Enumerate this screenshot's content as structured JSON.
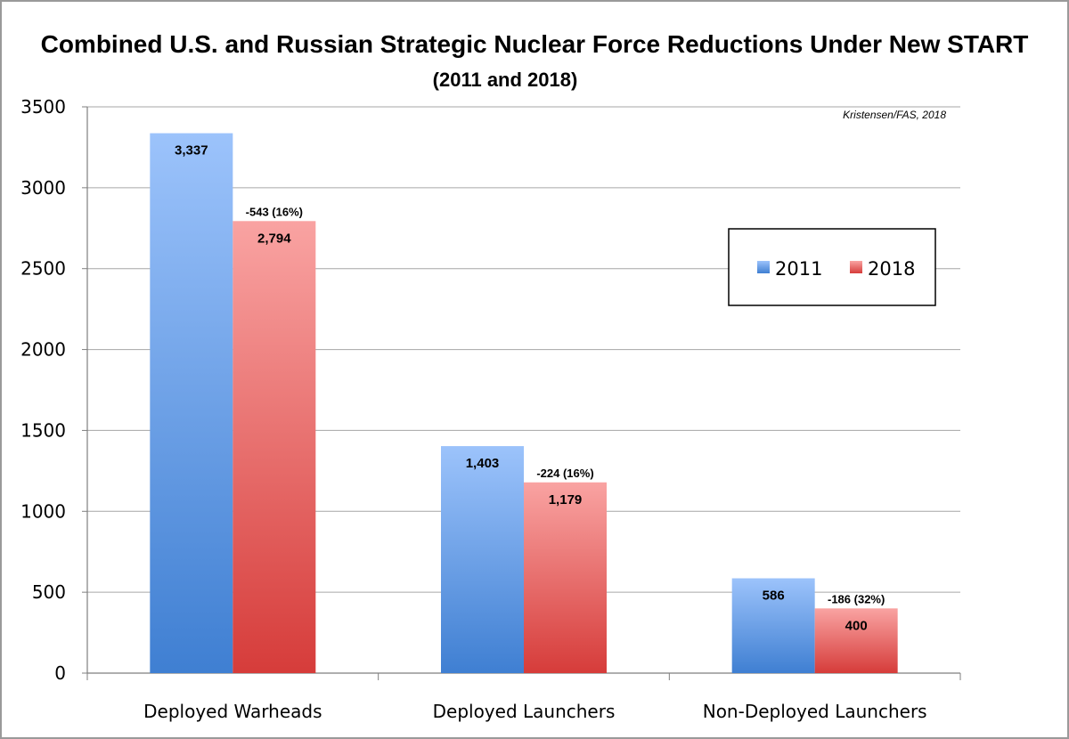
{
  "chart_data": {
    "type": "bar",
    "title": "Combined U.S. and Russian Strategic Nuclear Force Reductions Under New START",
    "subtitle": "(2011 and 2018)",
    "source": "Kristensen/FAS, 2018",
    "categories": [
      "Deployed Warheads",
      "Deployed Launchers",
      "Non-Deployed Launchers"
    ],
    "series": [
      {
        "name": "2011",
        "color": "#4a86d8",
        "values": [
          3337,
          1403,
          586
        ],
        "labels": [
          "3,337",
          "1,403",
          "586"
        ]
      },
      {
        "name": "2018",
        "color": "#e0504d",
        "values": [
          2794,
          1179,
          400
        ],
        "labels": [
          "2,794",
          "1,179",
          "400"
        ]
      }
    ],
    "change_labels": [
      "-543 (16%)",
      "-224 (16%)",
      "-186 (32%)"
    ],
    "ylim": [
      0,
      3500
    ],
    "yticks": [
      0,
      500,
      1000,
      1500,
      2000,
      2500,
      3000,
      3500
    ],
    "ytick_labels": [
      "0",
      "500",
      "1000",
      "1500",
      "2000",
      "2500",
      "3000",
      "3500"
    ],
    "xlabel": "",
    "ylabel": "",
    "grid": true,
    "legend_position": "right"
  }
}
